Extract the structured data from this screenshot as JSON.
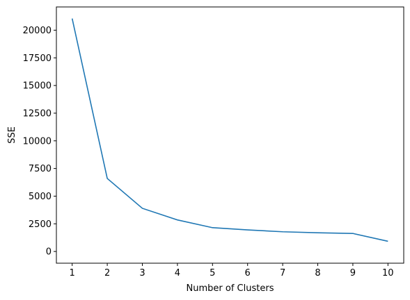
{
  "chart_data": {
    "type": "line",
    "x": [
      1,
      2,
      3,
      4,
      5,
      6,
      7,
      8,
      9,
      10
    ],
    "series": [
      {
        "values": [
          21050,
          6600,
          3900,
          2850,
          2150,
          1950,
          1780,
          1690,
          1630,
          920
        ]
      }
    ],
    "xlabel": "Number of Clusters",
    "ylabel": "SSE",
    "xticks": [
      1,
      2,
      3,
      4,
      5,
      6,
      7,
      8,
      9,
      10
    ],
    "yticks": [
      0,
      2500,
      5000,
      7500,
      10000,
      12500,
      15000,
      17500,
      20000
    ],
    "xlim": [
      0.55,
      10.45
    ],
    "ylim": [
      -1060,
      22100
    ],
    "grid": false,
    "line_color": "#1f77b4"
  }
}
